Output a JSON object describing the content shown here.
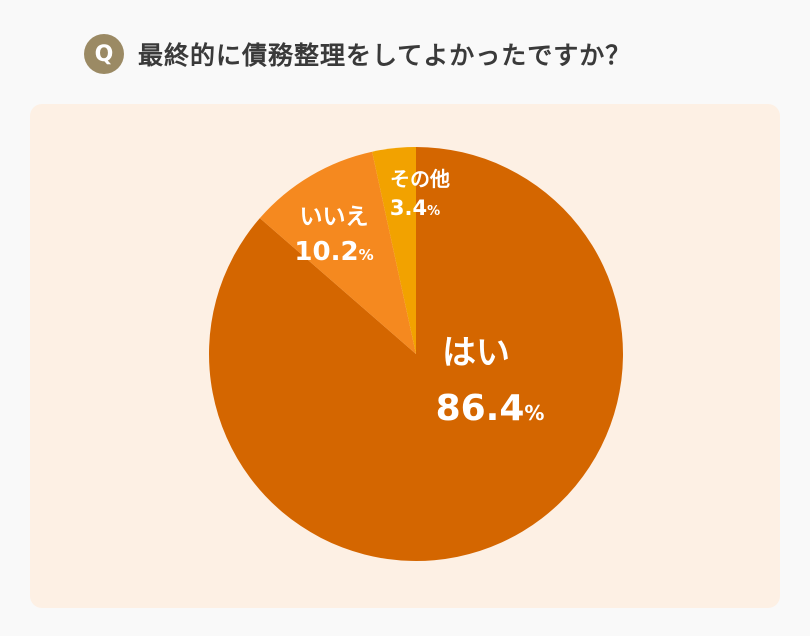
{
  "header": {
    "badge": "Q",
    "question": "最終的に債務整理をしてよかったですか？"
  },
  "chart_data": {
    "type": "pie",
    "title": "最終的に債務整理をしてよかったですか？",
    "unit": "%",
    "start_angle": "12 o'clock",
    "direction": "clockwise",
    "slices": [
      {
        "name": "はい",
        "value": 86.4,
        "value_label": "86.4",
        "color": "#d46600"
      },
      {
        "name": "いいえ",
        "value": 10.2,
        "value_label": "10.2",
        "color": "#f5891f"
      },
      {
        "name": "その他",
        "value": 3.4,
        "value_label": "3.4",
        "color": "#f2a200"
      }
    ]
  }
}
